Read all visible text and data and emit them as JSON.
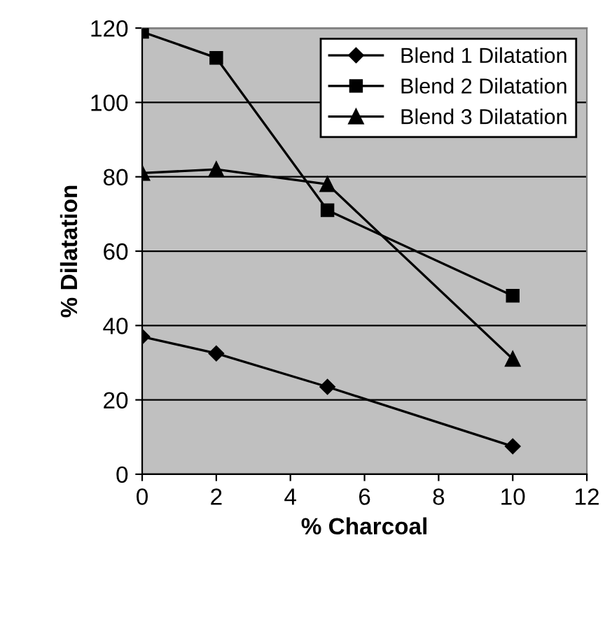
{
  "chart_data": {
    "type": "line",
    "xlabel": "% Charcoal",
    "ylabel": "% Dilatation",
    "x": [
      0,
      2,
      5,
      10
    ],
    "series": [
      {
        "name": "Blend 1 Dilatation",
        "color": "#000000",
        "marker": "diamond",
        "values": [
          37,
          32.5,
          23.5,
          7.5
        ]
      },
      {
        "name": "Blend 2 Dilatation",
        "color": "#000000",
        "marker": "square",
        "values": [
          119,
          112,
          71,
          48
        ]
      },
      {
        "name": "Blend 3 Dilatation",
        "color": "#000000",
        "marker": "triangle",
        "values": [
          81,
          82,
          78,
          31
        ]
      }
    ],
    "xlim": [
      0,
      12
    ],
    "xticks": [
      0,
      2,
      4,
      6,
      8,
      10,
      12
    ],
    "ylim": [
      0,
      120
    ],
    "yticks": [
      0,
      20,
      40,
      60,
      80,
      100,
      120
    ],
    "grid": "y",
    "legend": "top right",
    "line_style": "solid"
  }
}
